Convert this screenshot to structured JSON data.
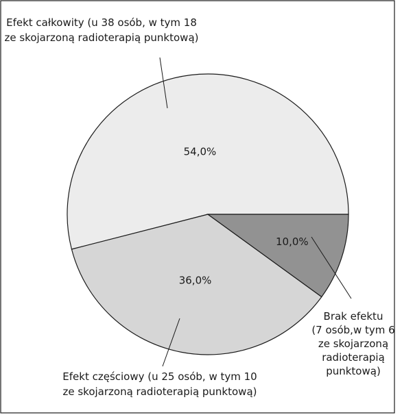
{
  "chart_data": {
    "type": "pie",
    "slices": [
      {
        "label": "Efekt całkowity",
        "value": 54.0,
        "value_label": "54,0%",
        "color": "#ececec",
        "annotation": [
          "Efekt całkowity (u 38 osób, w tym 18",
          "ze skojarzoną radioterapią punktową)"
        ]
      },
      {
        "label": "Efekt częściowy",
        "value": 36.0,
        "value_label": "36,0%",
        "color": "#d6d6d6",
        "annotation": [
          "Efekt częściowy (u 25 osób, w tym 10",
          "ze skojarzoną radioterapią punktową)"
        ]
      },
      {
        "label": "Brak efektu",
        "value": 10.0,
        "value_label": "10,0%",
        "color": "#929292",
        "annotation": [
          "Brak efektu",
          "(7 osób,w tym 6",
          "ze skojarzoną",
          "radioterapią",
          "punktową)"
        ]
      }
    ],
    "start": "right (3 o'clock), counter-clockwise",
    "legend": "none",
    "edge_color": "#1a1a1a",
    "frame": true
  }
}
